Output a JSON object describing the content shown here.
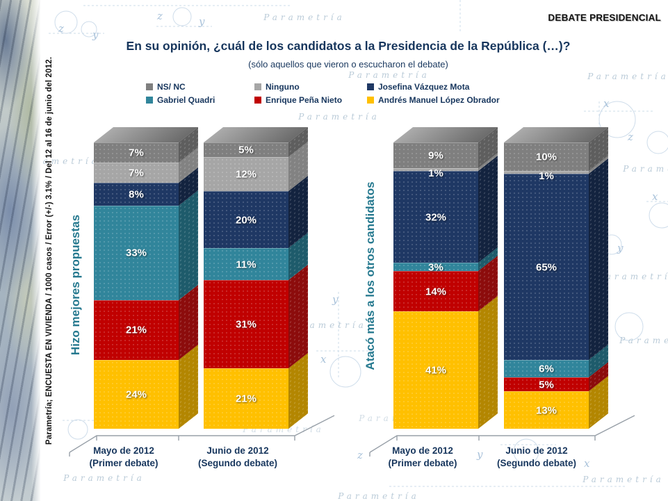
{
  "header": {
    "corner_label": "DEBATE PRESIDENCIAL",
    "title": "En su opinión, ¿cuál de los candidatos a la Presidencia de la República (…)?",
    "subtitle": "(sólo aquellos que vieron o escucharon el debate)"
  },
  "source_note": "Parametría; ENCUESTA EN VIVIENDA / 1000 casos / Error (+/-) 3.1% / Del 12 al 16 de junio del 2012.",
  "watermark": "Parametría",
  "decor": {
    "x": "x",
    "y": "y",
    "z": "z"
  },
  "legend": {
    "items": [
      {
        "label": "NS/ NC",
        "color": "#7f7f7f"
      },
      {
        "label": "Ninguno",
        "color": "#a6a6a6"
      },
      {
        "label": "Josefina Vázquez Mota",
        "color": "#1f3864"
      },
      {
        "label": "Gabriel Quadri",
        "color": "#31859b"
      },
      {
        "label": "Enrique Peña Nieto",
        "color": "#c00000"
      },
      {
        "label": "Andrés Manuel López Obrador",
        "color": "#ffc000"
      }
    ]
  },
  "chart_data": [
    {
      "type": "bar",
      "subtype": "stacked-3d-percent",
      "title": "Hizo mejores propuestas",
      "unit": "%",
      "ylim": [
        0,
        100
      ],
      "grid": false,
      "legend_position": "top",
      "categories": [
        {
          "label": "Mayo de 2012 (Primer debate)",
          "line1": "Mayo de 2012",
          "line2": "(Primer debate)"
        },
        {
          "label": "Junio de 2012 (Segundo debate)",
          "line1": "Junio de 2012",
          "line2": "(Segundo debate)"
        }
      ],
      "series": [
        {
          "name": "Andrés Manuel López Obrador",
          "color": "#ffc000",
          "side_color": "#b38600",
          "values": [
            24,
            21
          ]
        },
        {
          "name": "Enrique Peña Nieto",
          "color": "#c00000",
          "side_color": "#8c0c0c",
          "values": [
            21,
            31
          ]
        },
        {
          "name": "Gabriel Quadri",
          "color": "#31859b",
          "side_color": "#1e5b6b",
          "values": [
            33,
            11
          ]
        },
        {
          "name": "Josefina Vázquez Mota",
          "color": "#1f3864",
          "side_color": "#13233f",
          "values": [
            8,
            20
          ]
        },
        {
          "name": "Ninguno",
          "color": "#a6a6a6",
          "side_color": "#828282",
          "values": [
            7,
            12
          ]
        },
        {
          "name": "NS/ NC",
          "color": "#7f7f7f",
          "side_color": "#5e5e5e",
          "values": [
            7,
            5
          ]
        }
      ]
    },
    {
      "type": "bar",
      "subtype": "stacked-3d-percent",
      "title": "Atacó más a los otros candidatos",
      "unit": "%",
      "ylim": [
        0,
        100
      ],
      "grid": false,
      "legend_position": "top",
      "categories": [
        {
          "label": "Mayo de 2012 (Primer debate)",
          "line1": "Mayo de 2012",
          "line2": "(Primer debate)"
        },
        {
          "label": "Junio de 2012 (Segundo debate)",
          "line1": "Junio de 2012",
          "line2": "(Segundo debate)"
        }
      ],
      "series": [
        {
          "name": "Andrés Manuel López Obrador",
          "color": "#ffc000",
          "side_color": "#b38600",
          "values": [
            41,
            13
          ]
        },
        {
          "name": "Enrique Peña Nieto",
          "color": "#c00000",
          "side_color": "#8c0c0c",
          "values": [
            14,
            5
          ]
        },
        {
          "name": "Gabriel Quadri",
          "color": "#31859b",
          "side_color": "#1e5b6b",
          "values": [
            3,
            6
          ]
        },
        {
          "name": "Josefina Vázquez Mota",
          "color": "#1f3864",
          "side_color": "#13233f",
          "values": [
            32,
            65
          ]
        },
        {
          "name": "Ninguno",
          "color": "#a6a6a6",
          "side_color": "#828282",
          "values": [
            1,
            1
          ]
        },
        {
          "name": "NS/ NC",
          "color": "#7f7f7f",
          "side_color": "#5e5e5e",
          "values": [
            9,
            10
          ]
        }
      ]
    }
  ]
}
